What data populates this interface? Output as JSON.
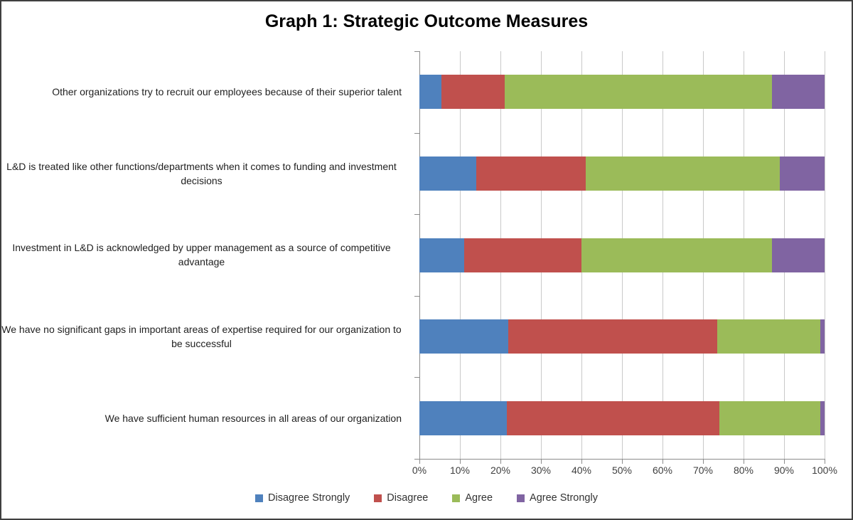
{
  "title": "Graph 1: Strategic Outcome Measures",
  "colors": {
    "disagree_strongly": "#4F81BD",
    "disagree": "#C0504D",
    "agree": "#9BBB59",
    "agree_strongly": "#8064A2",
    "gridline": "#C9C9C9",
    "axis": "#8C8C8C",
    "frame_border": "#3F3F3F",
    "tick_label_text": "#3F3F3F",
    "category_label_text": "#1F1F1F"
  },
  "chart_data": {
    "type": "bar",
    "orientation": "horizontal",
    "stacked": true,
    "title": "Graph 1: Strategic Outcome Measures",
    "categories": [
      "Other organizations try to recruit our employees because of their superior talent",
      "L&D is treated like other functions/departments when it comes to funding and investment decisions",
      "Investment in L&D is acknowledged by upper management as a source of competitive advantage",
      "We have no significant gaps in important areas of expertise required for our organization to be successful",
      "We have sufficient human resources in all areas of our organization"
    ],
    "series": [
      {
        "name": "Disagree Strongly",
        "color": "#4F81BD",
        "values": [
          5.4,
          14,
          11,
          22,
          21.5
        ]
      },
      {
        "name": "Disagree",
        "color": "#C0504D",
        "values": [
          15.6,
          27,
          29,
          51.5,
          52.5
        ]
      },
      {
        "name": "Agree",
        "color": "#9BBB59",
        "values": [
          66,
          48,
          47,
          25.5,
          25
        ]
      },
      {
        "name": "Agree Strongly",
        "color": "#8064A2",
        "values": [
          13,
          11,
          13,
          1,
          1
        ]
      }
    ],
    "x_ticks": [
      "0%",
      "10%",
      "20%",
      "30%",
      "40%",
      "50%",
      "60%",
      "70%",
      "80%",
      "90%",
      "100%"
    ],
    "xlim": [
      0,
      100
    ],
    "grid": true,
    "legend_position": "bottom",
    "legend": [
      "Disagree Strongly",
      "Disagree",
      "Agree",
      "Agree Strongly"
    ]
  }
}
